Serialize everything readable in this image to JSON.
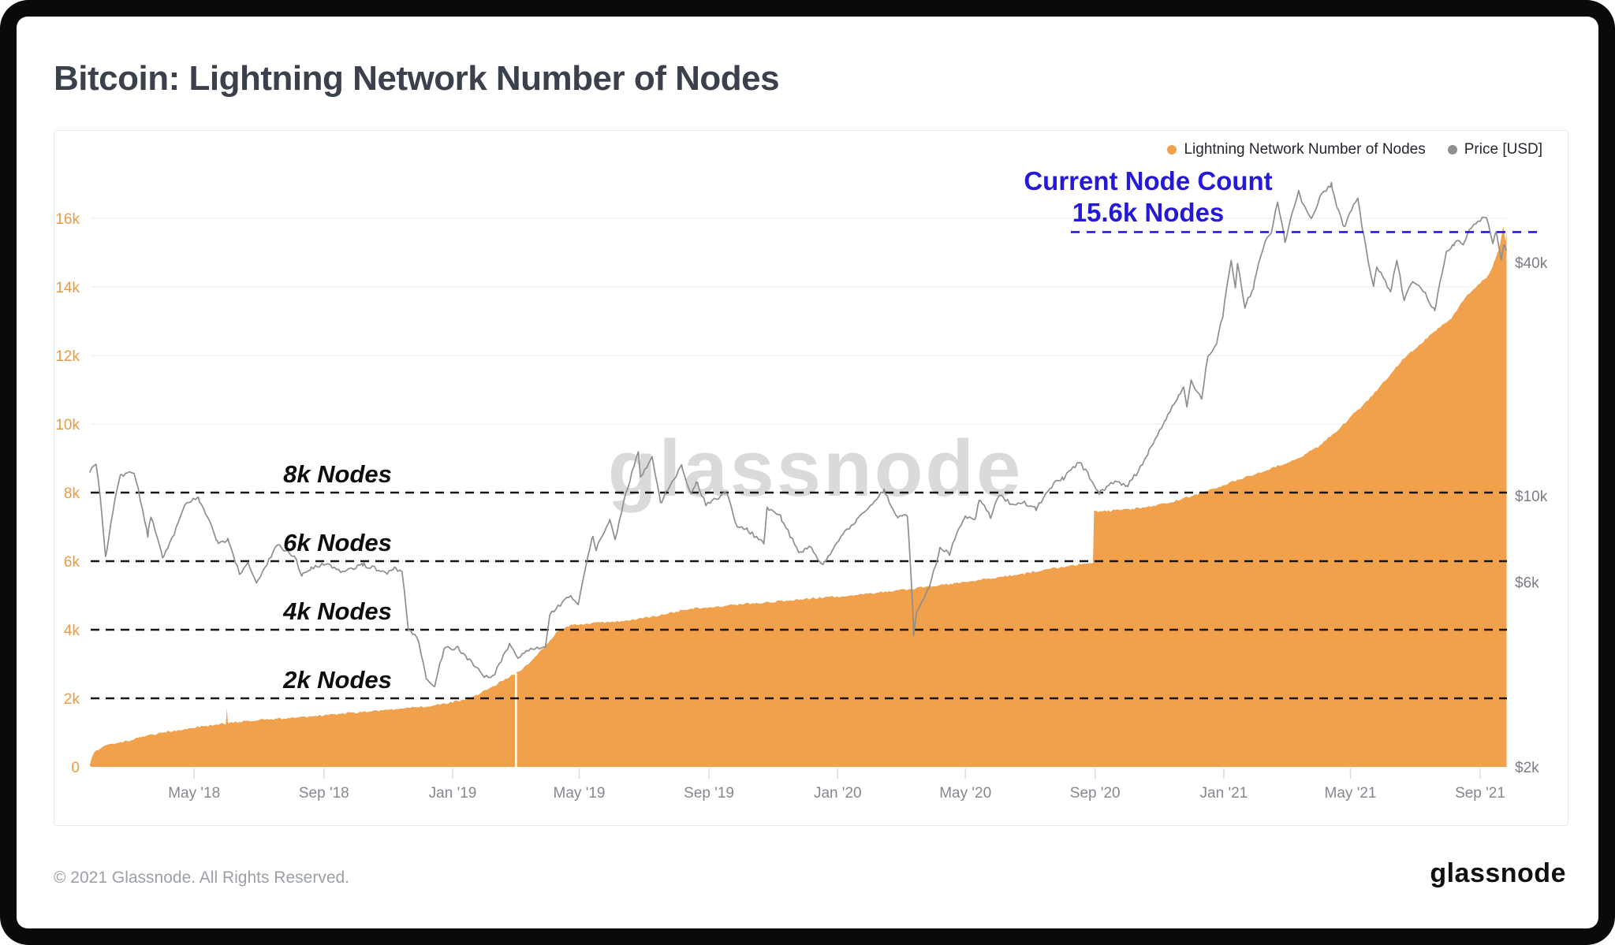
{
  "header": {
    "title": "Bitcoin: Lightning Network Number of Nodes"
  },
  "legend": [
    {
      "label": "Lightning Network Number of Nodes",
      "color": "#F1A14C"
    },
    {
      "label": "Price [USD]",
      "color": "#8E8E8E"
    }
  ],
  "annotation": {
    "line1": "Current Node Count",
    "line2": "15.6k Nodes",
    "value": 15600,
    "color": "#2519D8"
  },
  "watermark": "glassnode",
  "footer": {
    "copyright": "© 2021 Glassnode. All Rights Reserved.",
    "brand": "glassnode"
  },
  "chart_data": {
    "type": "combo",
    "title": "Bitcoin: Lightning Network Number of Nodes",
    "grid": "horizontal",
    "legend_position": "top-right",
    "x_ticks": [
      {
        "label": "May '18",
        "date": "2018-05-01"
      },
      {
        "label": "Sep '18",
        "date": "2018-09-01"
      },
      {
        "label": "Jan '19",
        "date": "2019-01-01"
      },
      {
        "label": "May '19",
        "date": "2019-05-01"
      },
      {
        "label": "Sep '19",
        "date": "2019-09-01"
      },
      {
        "label": "Jan '20",
        "date": "2020-01-01"
      },
      {
        "label": "May '20",
        "date": "2020-05-01"
      },
      {
        "label": "Sep '20",
        "date": "2020-09-01"
      },
      {
        "label": "Jan '21",
        "date": "2021-01-01"
      },
      {
        "label": "May '21",
        "date": "2021-05-01"
      },
      {
        "label": "Sep '21",
        "date": "2021-09-01"
      }
    ],
    "y_left": {
      "title": "Lightning Network Number of Nodes",
      "scale": "linear",
      "range": [
        0,
        16000
      ],
      "ticks": [
        {
          "v": 0,
          "label": "0"
        },
        {
          "v": 2000,
          "label": "2k"
        },
        {
          "v": 4000,
          "label": "4k"
        },
        {
          "v": 6000,
          "label": "6k"
        },
        {
          "v": 8000,
          "label": "8k"
        },
        {
          "v": 10000,
          "label": "10k"
        },
        {
          "v": 12000,
          "label": "12k"
        },
        {
          "v": 14000,
          "label": "14k"
        },
        {
          "v": 16000,
          "label": "16k"
        }
      ],
      "tick_color": "#EC9A41"
    },
    "y_right": {
      "title": "Price [USD]",
      "scale": "log",
      "ticks": [
        {
          "v": 2000,
          "label": "$2k"
        },
        {
          "v": 6000,
          "label": "$6k"
        },
        {
          "v": 10000,
          "label": "$10k"
        },
        {
          "v": 40000,
          "label": "$40k"
        }
      ],
      "tick_color": "#7A7E84"
    },
    "reference_lines_nodes": [
      {
        "label": "8k Nodes",
        "value": 8000
      },
      {
        "label": "6k Nodes",
        "value": 6000
      },
      {
        "label": "4k Nodes",
        "value": 4000
      },
      {
        "label": "2k Nodes",
        "value": 2000
      }
    ],
    "current_node_line": {
      "value": 15600,
      "color": "#2519D8"
    },
    "data_gap_date": "2019-03-02",
    "series": [
      {
        "name": "Lightning Network Number of Nodes",
        "type": "area",
        "axis": "left",
        "color": "#F1A14C",
        "points": [
          [
            "2018-01-22",
            70
          ],
          [
            "2018-01-26",
            420
          ],
          [
            "2018-02-05",
            600
          ],
          [
            "2018-02-20",
            720
          ],
          [
            "2018-03-10",
            850
          ],
          [
            "2018-04-01",
            1000
          ],
          [
            "2018-04-20",
            1100
          ],
          [
            "2018-05-10",
            1180
          ],
          [
            "2018-05-31",
            1270
          ],
          [
            "2018-06-01",
            1720
          ],
          [
            "2018-06-02",
            1290
          ],
          [
            "2018-06-25",
            1350
          ],
          [
            "2018-07-20",
            1410
          ],
          [
            "2018-08-15",
            1460
          ],
          [
            "2018-09-10",
            1530
          ],
          [
            "2018-10-10",
            1610
          ],
          [
            "2018-11-10",
            1690
          ],
          [
            "2018-12-05",
            1760
          ],
          [
            "2018-12-28",
            1860
          ],
          [
            "2019-01-12",
            1960
          ],
          [
            "2019-01-25",
            2120
          ],
          [
            "2019-02-08",
            2350
          ],
          [
            "2019-02-22",
            2600
          ],
          [
            "2019-03-08",
            2850
          ],
          [
            "2019-03-20",
            3200
          ],
          [
            "2019-04-01",
            3600
          ],
          [
            "2019-04-10",
            3950
          ],
          [
            "2019-04-22",
            4120
          ],
          [
            "2019-05-10",
            4180
          ],
          [
            "2019-06-01",
            4230
          ],
          [
            "2019-06-25",
            4310
          ],
          [
            "2019-07-20",
            4450
          ],
          [
            "2019-08-15",
            4620
          ],
          [
            "2019-09-15",
            4700
          ],
          [
            "2019-10-15",
            4780
          ],
          [
            "2019-11-15",
            4850
          ],
          [
            "2019-12-15",
            4940
          ],
          [
            "2020-01-20",
            5010
          ],
          [
            "2020-02-20",
            5130
          ],
          [
            "2020-03-20",
            5230
          ],
          [
            "2020-04-20",
            5340
          ],
          [
            "2020-05-20",
            5480
          ],
          [
            "2020-06-20",
            5610
          ],
          [
            "2020-07-20",
            5780
          ],
          [
            "2020-08-15",
            5890
          ],
          [
            "2020-08-30",
            5950
          ],
          [
            "2020-08-31",
            7450
          ],
          [
            "2020-09-15",
            7470
          ],
          [
            "2020-10-05",
            7520
          ],
          [
            "2020-10-25",
            7600
          ],
          [
            "2020-11-15",
            7750
          ],
          [
            "2020-12-05",
            7930
          ],
          [
            "2020-12-28",
            8180
          ],
          [
            "2021-01-15",
            8380
          ],
          [
            "2021-02-05",
            8600
          ],
          [
            "2021-02-25",
            8820
          ],
          [
            "2021-03-15",
            9050
          ],
          [
            "2021-04-01",
            9350
          ],
          [
            "2021-04-18",
            9800
          ],
          [
            "2021-05-01",
            10200
          ],
          [
            "2021-05-18",
            10700
          ],
          [
            "2021-06-01",
            11200
          ],
          [
            "2021-06-20",
            11900
          ],
          [
            "2021-07-05",
            12300
          ],
          [
            "2021-07-20",
            12700
          ],
          [
            "2021-08-05",
            13100
          ],
          [
            "2021-08-18",
            13700
          ],
          [
            "2021-08-28",
            14000
          ],
          [
            "2021-09-08",
            14300
          ],
          [
            "2021-09-14",
            14700
          ],
          [
            "2021-09-19",
            15100
          ],
          [
            "2021-09-23",
            15750
          ],
          [
            "2021-09-25",
            15350
          ],
          [
            "2021-09-26",
            15600
          ]
        ]
      },
      {
        "name": "Price [USD]",
        "type": "line",
        "axis": "right",
        "color": "#8E8E8E",
        "points": [
          [
            "2018-01-22",
            11500
          ],
          [
            "2018-01-28",
            12200
          ],
          [
            "2018-02-06",
            6900
          ],
          [
            "2018-02-20",
            11300
          ],
          [
            "2018-03-05",
            11450
          ],
          [
            "2018-03-18",
            7900
          ],
          [
            "2018-03-21",
            8900
          ],
          [
            "2018-04-01",
            6900
          ],
          [
            "2018-04-12",
            7950
          ],
          [
            "2018-04-24",
            9650
          ],
          [
            "2018-05-05",
            9850
          ],
          [
            "2018-05-23",
            7600
          ],
          [
            "2018-06-02",
            7700
          ],
          [
            "2018-06-13",
            6300
          ],
          [
            "2018-06-21",
            6750
          ],
          [
            "2018-06-29",
            5900
          ],
          [
            "2018-07-19",
            7450
          ],
          [
            "2018-08-04",
            7000
          ],
          [
            "2018-08-11",
            6250
          ],
          [
            "2018-08-19",
            6500
          ],
          [
            "2018-09-05",
            6700
          ],
          [
            "2018-09-18",
            6300
          ],
          [
            "2018-10-08",
            6650
          ],
          [
            "2018-10-31",
            6350
          ],
          [
            "2018-11-07",
            6500
          ],
          [
            "2018-11-14",
            6350
          ],
          [
            "2018-11-20",
            4550
          ],
          [
            "2018-11-29",
            4250
          ],
          [
            "2018-12-07",
            3400
          ],
          [
            "2018-12-15",
            3200
          ],
          [
            "2018-12-24",
            4050
          ],
          [
            "2019-01-06",
            4050
          ],
          [
            "2019-01-29",
            3450
          ],
          [
            "2019-02-08",
            3400
          ],
          [
            "2019-02-24",
            4150
          ],
          [
            "2019-03-04",
            3800
          ],
          [
            "2019-03-16",
            4050
          ],
          [
            "2019-03-30",
            4100
          ],
          [
            "2019-04-03",
            4950
          ],
          [
            "2019-04-23",
            5550
          ],
          [
            "2019-04-30",
            5250
          ],
          [
            "2019-05-14",
            7900
          ],
          [
            "2019-05-17",
            7300
          ],
          [
            "2019-05-30",
            8700
          ],
          [
            "2019-06-04",
            7700
          ],
          [
            "2019-06-26",
            12900
          ],
          [
            "2019-06-28",
            11200
          ],
          [
            "2019-07-09",
            12600
          ],
          [
            "2019-07-17",
            9550
          ],
          [
            "2019-08-06",
            11900
          ],
          [
            "2019-08-15",
            10000
          ],
          [
            "2019-08-20",
            10900
          ],
          [
            "2019-08-29",
            9500
          ],
          [
            "2019-09-18",
            10200
          ],
          [
            "2019-09-26",
            8450
          ],
          [
            "2019-10-07",
            8200
          ],
          [
            "2019-10-23",
            7500
          ],
          [
            "2019-10-26",
            9300
          ],
          [
            "2019-11-08",
            8800
          ],
          [
            "2019-11-25",
            7100
          ],
          [
            "2019-12-05",
            7400
          ],
          [
            "2019-12-18",
            6650
          ],
          [
            "2019-12-28",
            7300
          ],
          [
            "2020-01-08",
            8100
          ],
          [
            "2020-01-19",
            8650
          ],
          [
            "2020-02-14",
            10300
          ],
          [
            "2020-02-26",
            8800
          ],
          [
            "2020-03-07",
            8900
          ],
          [
            "2020-03-13",
            4400
          ],
          [
            "2020-03-16",
            5000
          ],
          [
            "2020-03-29",
            5900
          ],
          [
            "2020-04-07",
            7300
          ],
          [
            "2020-04-16",
            7100
          ],
          [
            "2020-04-30",
            8800
          ],
          [
            "2020-05-10",
            8650
          ],
          [
            "2020-05-14",
            9750
          ],
          [
            "2020-05-25",
            8850
          ],
          [
            "2020-06-02",
            10100
          ],
          [
            "2020-06-15",
            9400
          ],
          [
            "2020-06-24",
            9650
          ],
          [
            "2020-07-07",
            9250
          ],
          [
            "2020-07-27",
            10950
          ],
          [
            "2020-08-02",
            11100
          ],
          [
            "2020-08-17",
            12250
          ],
          [
            "2020-09-05",
            10150
          ],
          [
            "2020-09-20",
            10900
          ],
          [
            "2020-10-01",
            10550
          ],
          [
            "2020-10-10",
            11400
          ],
          [
            "2020-10-21",
            12800
          ],
          [
            "2020-11-06",
            15500
          ],
          [
            "2020-11-18",
            17800
          ],
          [
            "2020-11-24",
            19150
          ],
          [
            "2020-11-27",
            17100
          ],
          [
            "2020-12-01",
            19700
          ],
          [
            "2020-12-11",
            17800
          ],
          [
            "2020-12-17",
            22800
          ],
          [
            "2020-12-25",
            24700
          ],
          [
            "2020-12-31",
            29000
          ],
          [
            "2021-01-08",
            40600
          ],
          [
            "2021-01-12",
            34000
          ],
          [
            "2021-01-14",
            39400
          ],
          [
            "2021-01-21",
            30800
          ],
          [
            "2021-01-29",
            34300
          ],
          [
            "2021-02-08",
            44600
          ],
          [
            "2021-02-15",
            47900
          ],
          [
            "2021-02-21",
            57400
          ],
          [
            "2021-02-28",
            45200
          ],
          [
            "2021-03-13",
            61200
          ],
          [
            "2021-03-16",
            56900
          ],
          [
            "2021-03-25",
            51400
          ],
          [
            "2021-04-02",
            59000
          ],
          [
            "2021-04-13",
            63500
          ],
          [
            "2021-04-18",
            56200
          ],
          [
            "2021-04-25",
            49100
          ],
          [
            "2021-05-08",
            58800
          ],
          [
            "2021-05-12",
            49500
          ],
          [
            "2021-05-19",
            38500
          ],
          [
            "2021-05-23",
            34800
          ],
          [
            "2021-05-26",
            39300
          ],
          [
            "2021-06-08",
            33400
          ],
          [
            "2021-06-14",
            40500
          ],
          [
            "2021-06-21",
            31700
          ],
          [
            "2021-06-29",
            36000
          ],
          [
            "2021-07-09",
            33800
          ],
          [
            "2021-07-20",
            29800
          ],
          [
            "2021-07-31",
            42200
          ],
          [
            "2021-08-07",
            44600
          ],
          [
            "2021-08-10",
            45600
          ],
          [
            "2021-08-17",
            44700
          ],
          [
            "2021-08-23",
            49300
          ],
          [
            "2021-09-07",
            52700
          ],
          [
            "2021-09-13",
            44900
          ],
          [
            "2021-09-16",
            48100
          ],
          [
            "2021-09-21",
            40700
          ],
          [
            "2021-09-24",
            44500
          ],
          [
            "2021-09-26",
            42800
          ]
        ]
      }
    ]
  }
}
